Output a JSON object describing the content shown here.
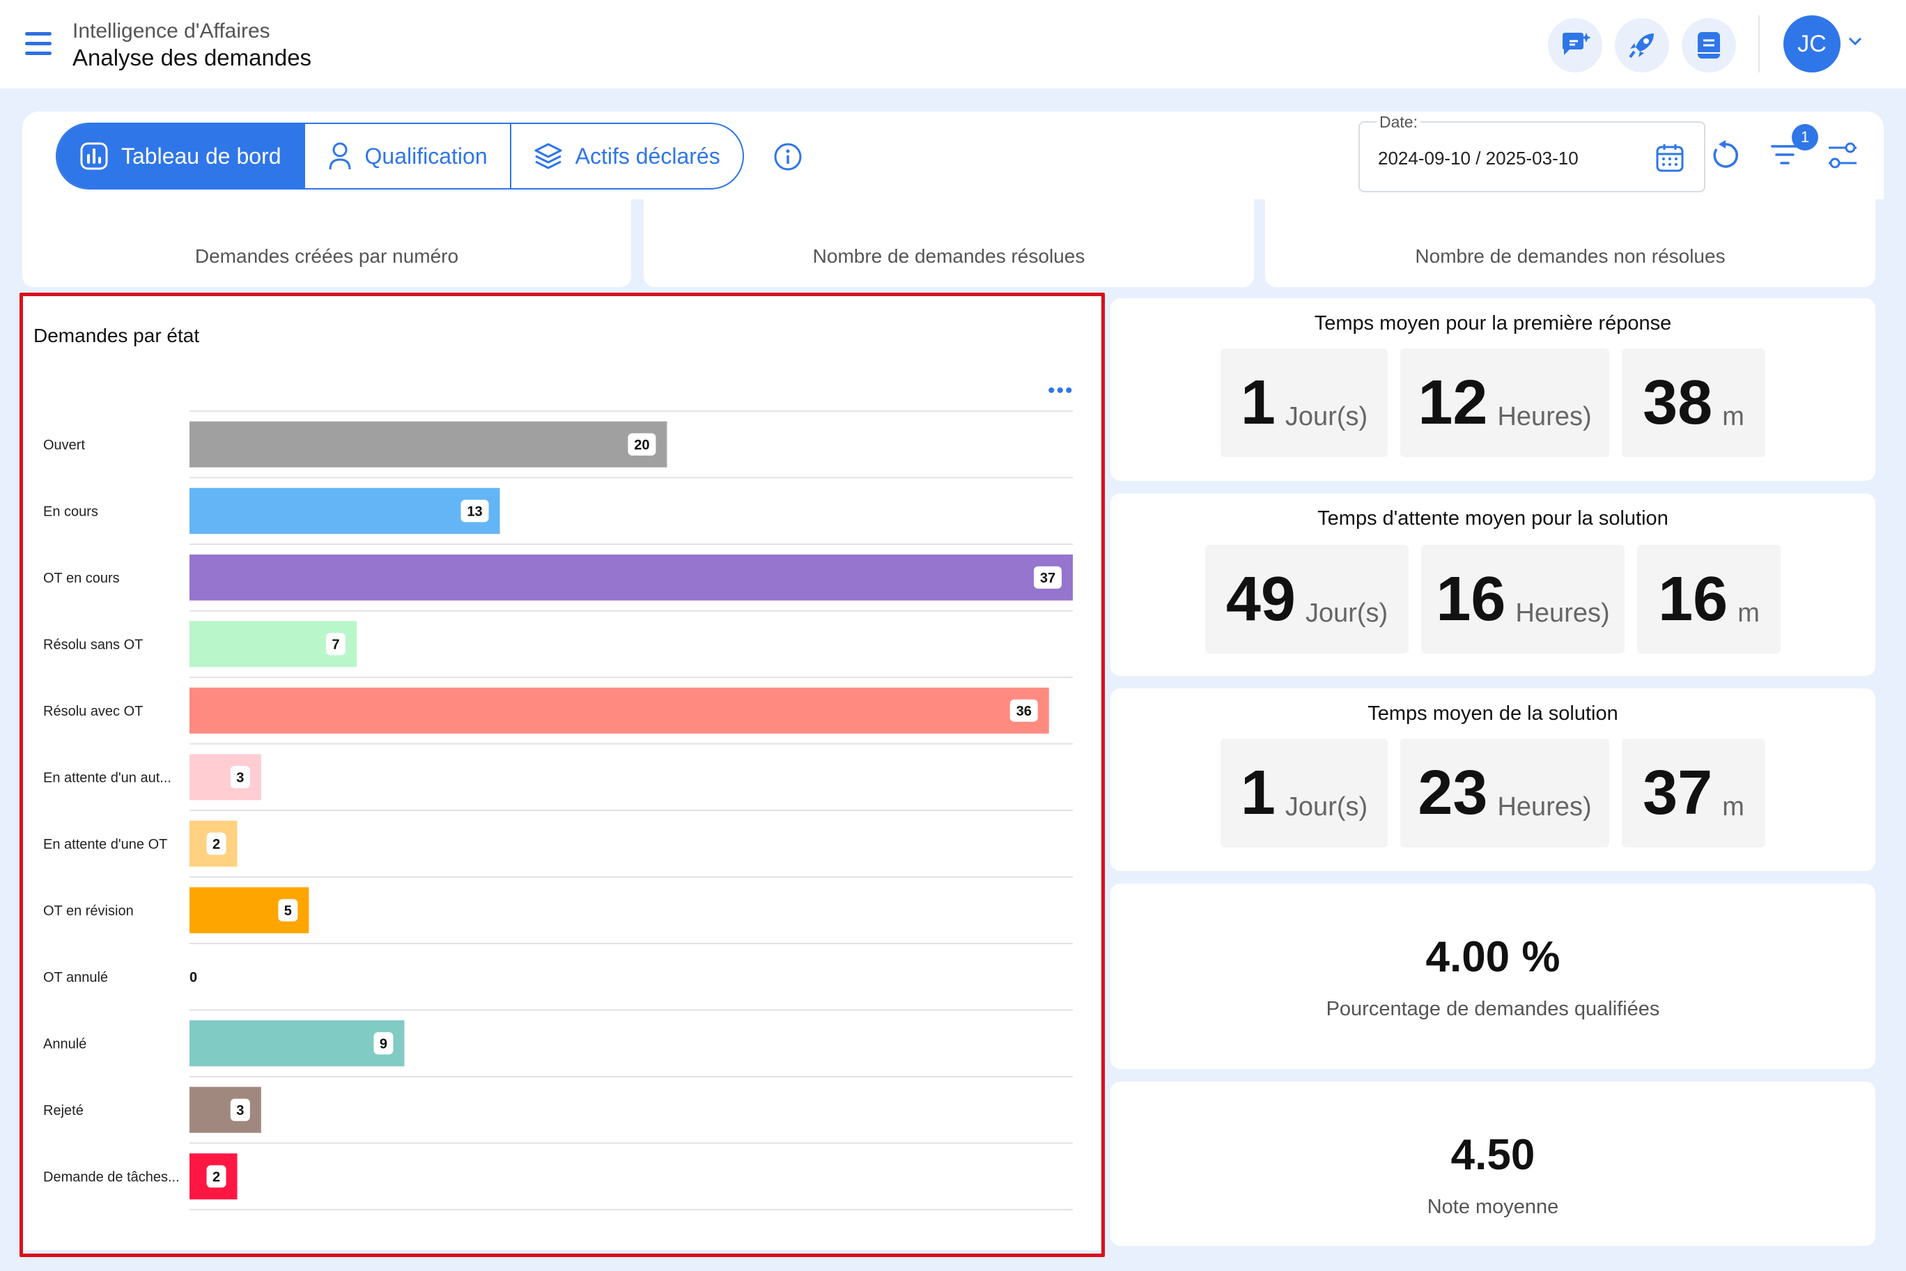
{
  "header": {
    "section": "Intelligence d'Affaires",
    "title": "Analyse des demandes",
    "avatar_initials": "JC"
  },
  "tabs": [
    {
      "label": "Tableau de bord",
      "active": true
    },
    {
      "label": "Qualification",
      "active": false
    },
    {
      "label": "Actifs déclarés",
      "active": false
    }
  ],
  "date_filter": {
    "label": "Date:",
    "value": "2024-09-10 / 2025-03-10"
  },
  "filter_badge": "1",
  "kpis": [
    {
      "label": "Demandes créées par numéro"
    },
    {
      "label": "Nombre de demandes résolues"
    },
    {
      "label": "Nombre de demandes non résolues"
    }
  ],
  "chart_data": {
    "type": "bar",
    "orientation": "horizontal",
    "title": "Demandes par état",
    "categories": [
      "Ouvert",
      "En cours",
      "OT en cours",
      "Résolu sans OT",
      "Résolu avec OT",
      "En attente d'un aut...",
      "En attente d'une OT",
      "OT en révision",
      "OT annulé",
      "Annulé",
      "Rejeté",
      "Demande de tâches..."
    ],
    "values": [
      20,
      13,
      37,
      7,
      36,
      3,
      2,
      5,
      0,
      9,
      3,
      2
    ],
    "colors": [
      "#a0a0a0",
      "#64b5f6",
      "#9575cd",
      "#b9f6ca",
      "#ff8a80",
      "#ffcdd2",
      "#ffd180",
      "#ffa500",
      "#cccccc",
      "#80cbc4",
      "#a1887f",
      "#ff1744"
    ],
    "xlim": [
      0,
      37
    ],
    "grid": true,
    "data_labels": true
  },
  "metrics": {
    "first_response": {
      "title": "Temps moyen pour la première réponse",
      "days": "1",
      "hours": "12",
      "minutes": "38"
    },
    "wait_solution": {
      "title": "Temps d'attente moyen pour la solution",
      "days": "49",
      "hours": "16",
      "minutes": "16"
    },
    "avg_solution": {
      "title": "Temps moyen de la solution",
      "days": "1",
      "hours": "23",
      "minutes": "37"
    },
    "units": {
      "days": "Jour(s)",
      "hours": "Heures)",
      "minutes": "m"
    },
    "qualified": {
      "value": "4.00 %",
      "label": "Pourcentage de demandes qualifiées"
    },
    "rating": {
      "value": "4.50",
      "label": "Note moyenne"
    }
  }
}
